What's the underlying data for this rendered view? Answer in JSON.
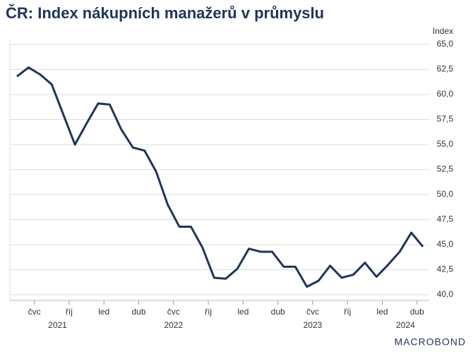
{
  "chart_data": {
    "type": "line",
    "title": "ČR: Index nákupních manažerů v průmyslu",
    "y_axis_label": "Index",
    "logo": "MACROBOND",
    "categories": [
      null,
      null,
      "čvc",
      null,
      null,
      "říj",
      null,
      null,
      "led",
      null,
      null,
      "dub",
      null,
      null,
      "čvc",
      null,
      null,
      "říj",
      null,
      null,
      "led",
      null,
      null,
      "dub",
      null,
      null,
      "čvc",
      null,
      null,
      "říj",
      null,
      null,
      "led",
      null,
      null,
      "dub"
    ],
    "year_labels": [
      "2021",
      "2022",
      "2023",
      "2024"
    ],
    "series": [
      {
        "name": "Index",
        "color": "#1f3558",
        "values": [
          61.8,
          62.7,
          62.0,
          61.0,
          58.0,
          55.0,
          57.1,
          59.1,
          59.0,
          56.5,
          54.7,
          54.4,
          52.3,
          49.0,
          46.8,
          46.8,
          44.7,
          41.7,
          41.6,
          42.6,
          44.6,
          44.3,
          44.3,
          42.8,
          42.8,
          40.8,
          41.4,
          42.9,
          41.7,
          42.0,
          43.2,
          41.8,
          43.0,
          44.3,
          46.2,
          44.8
        ]
      }
    ],
    "ylim": [
      40,
      65
    ],
    "yticks": [
      {
        "value": 40,
        "label": "40,0"
      },
      {
        "value": 42.5,
        "label": "42,5"
      },
      {
        "value": 45,
        "label": "45,0"
      },
      {
        "value": 47.5,
        "label": "47,5"
      },
      {
        "value": 50,
        "label": "50,0"
      },
      {
        "value": 52.5,
        "label": "52,5"
      },
      {
        "value": 55,
        "label": "55,0"
      },
      {
        "value": 57.5,
        "label": "57,5"
      },
      {
        "value": 60,
        "label": "60,0"
      },
      {
        "value": 62.5,
        "label": "62,5"
      },
      {
        "value": 65,
        "label": "65,0"
      }
    ],
    "grid": true
  }
}
